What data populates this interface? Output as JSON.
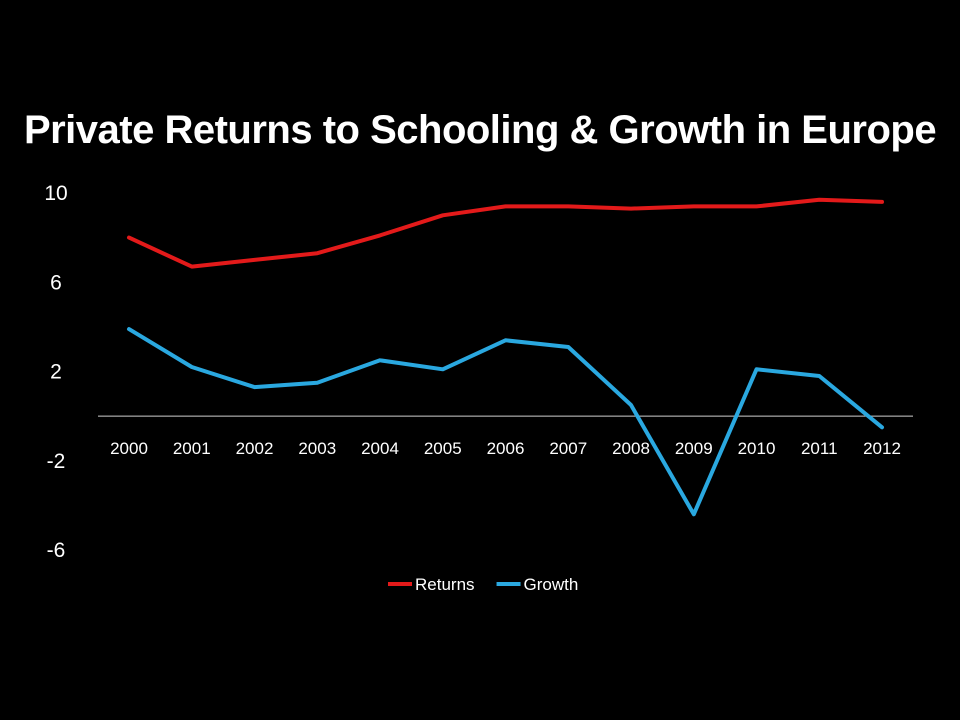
{
  "chart_data": {
    "type": "line",
    "title": "Private Returns to Schooling & Growth in Europe",
    "categories": [
      "2000",
      "2001",
      "2002",
      "2003",
      "2004",
      "2005",
      "2006",
      "2007",
      "2008",
      "2009",
      "2010",
      "2011",
      "2012"
    ],
    "series": [
      {
        "name": "Returns",
        "color": "#e31a1a",
        "values": [
          8.0,
          6.7,
          7.0,
          7.3,
          8.1,
          9.0,
          9.4,
          9.4,
          9.3,
          9.4,
          9.4,
          9.7,
          9.6
        ]
      },
      {
        "name": "Growth",
        "color": "#2aa8e0",
        "values": [
          3.9,
          2.2,
          1.3,
          1.5,
          2.5,
          2.1,
          3.4,
          3.1,
          0.5,
          -4.4,
          2.1,
          1.8,
          -0.5
        ]
      }
    ],
    "yticks": [
      "10",
      "6",
      "2",
      "-2",
      "-6"
    ],
    "ytick_values": [
      10,
      6,
      2,
      -2,
      -6
    ],
    "ylim": [
      -6,
      10
    ],
    "grid": false,
    "legend_position": "bottom"
  }
}
